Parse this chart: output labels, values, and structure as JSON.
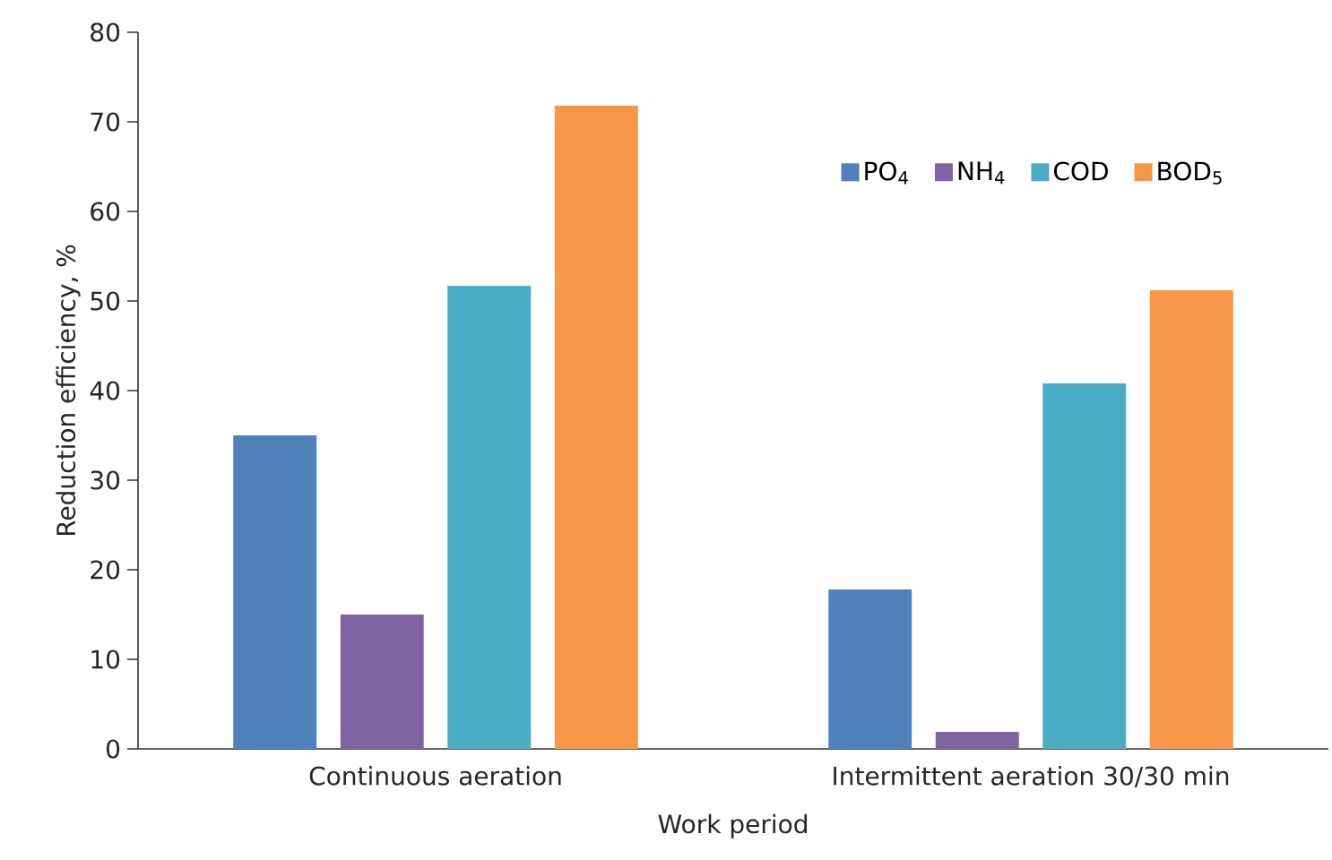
{
  "chart_data": {
    "type": "bar",
    "xlabel": "Work period",
    "ylabel": "Reduction efficiency, %",
    "categories": [
      "Continuous aeration",
      "Intermittent aeration 30/30 min"
    ],
    "series": [
      {
        "name": "PO$_{4}$",
        "color": "#4f81bd",
        "values": [
          35,
          17.8
        ]
      },
      {
        "name": "NH$_{4}$",
        "color": "#8064a2",
        "values": [
          15,
          1.9
        ]
      },
      {
        "name": "COD",
        "color": "#4bacc6",
        "values": [
          51.7,
          40.8
        ]
      },
      {
        "name": "BOD$_{5}$",
        "color": "#f79646",
        "values": [
          71.8,
          51.2
        ]
      }
    ],
    "ylim": [
      0,
      80
    ],
    "yticks": [
      0,
      10,
      20,
      30,
      40,
      50,
      60,
      70,
      80
    ],
    "grid": false,
    "legend": "top right"
  }
}
